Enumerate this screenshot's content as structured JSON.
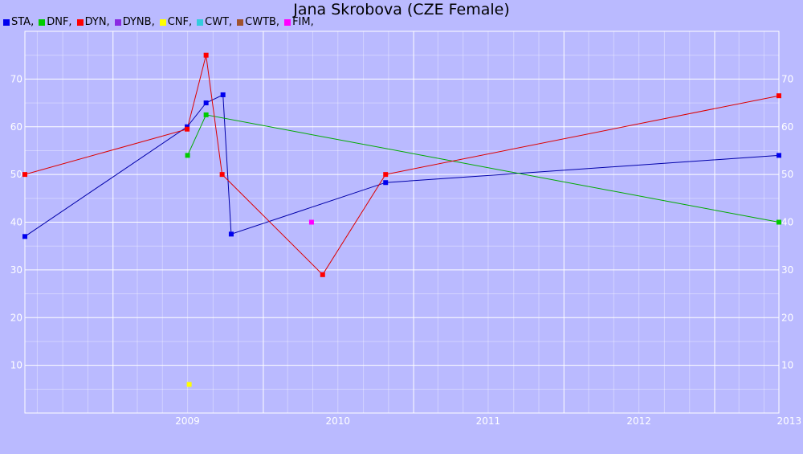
{
  "chart_data": {
    "type": "line",
    "title": "Jana Skrobova (CZE Female)",
    "xlabel": "",
    "ylabel": "",
    "x_domain": [
      "2008-06-01",
      "2013-06-06"
    ],
    "ylim": [
      0,
      80
    ],
    "x_ticks": [
      "2009",
      "2010",
      "2011",
      "2012",
      "2013"
    ],
    "y_ticks": [
      10,
      20,
      30,
      40,
      50,
      60,
      70
    ],
    "grid": true,
    "legend_position": "top-left",
    "legend": [
      {
        "name": "STA,",
        "color": "#0000ee"
      },
      {
        "name": "DNF,",
        "color": "#00cc00"
      },
      {
        "name": "DYN,",
        "color": "#ff0000"
      },
      {
        "name": "DYNB,",
        "color": "#8a2be2"
      },
      {
        "name": "CNF,",
        "color": "#ffff00"
      },
      {
        "name": "CWT,",
        "color": "#33ccdd"
      },
      {
        "name": "CWTB,",
        "color": "#a0522d"
      },
      {
        "name": "FIM,",
        "color": "#ff00ff"
      }
    ],
    "series": [
      {
        "name": "STA,",
        "color": "#0000ee",
        "line": "#0000aa",
        "points": [
          {
            "x": "2008-06-01",
            "y": 37
          },
          {
            "x": "2009-06-30",
            "y": 60
          },
          {
            "x": "2009-08-15",
            "y": 65
          },
          {
            "x": "2009-09-25",
            "y": 66.7
          },
          {
            "x": "2009-10-15",
            "y": 37.5
          },
          {
            "x": "2010-10-25",
            "y": 48.3
          },
          {
            "x": "2013-06-06",
            "y": 54
          }
        ]
      },
      {
        "name": "DNF,",
        "color": "#00cc00",
        "line": "#00aa00",
        "points": [
          {
            "x": "2009-07-01",
            "y": 54
          },
          {
            "x": "2009-08-15",
            "y": 62.5
          },
          {
            "x": "2013-06-06",
            "y": 40
          }
        ]
      },
      {
        "name": "DYN,",
        "color": "#ff0000",
        "line": "#dd0000",
        "points": [
          {
            "x": "2008-06-01",
            "y": 50
          },
          {
            "x": "2009-06-30",
            "y": 59.5
          },
          {
            "x": "2009-08-15",
            "y": 75
          },
          {
            "x": "2009-09-23",
            "y": 50
          },
          {
            "x": "2010-05-25",
            "y": 29
          },
          {
            "x": "2010-10-25",
            "y": 50
          },
          {
            "x": "2013-06-06",
            "y": 66.5
          }
        ]
      },
      {
        "name": "CNF,",
        "color": "#ffff00",
        "line": "#ffff00",
        "points": [
          {
            "x": "2009-07-05",
            "y": 6
          }
        ]
      },
      {
        "name": "FIM,",
        "color": "#ff00ff",
        "line": "#ff00ff",
        "points": [
          {
            "x": "2010-04-28",
            "y": 40
          }
        ]
      }
    ]
  }
}
